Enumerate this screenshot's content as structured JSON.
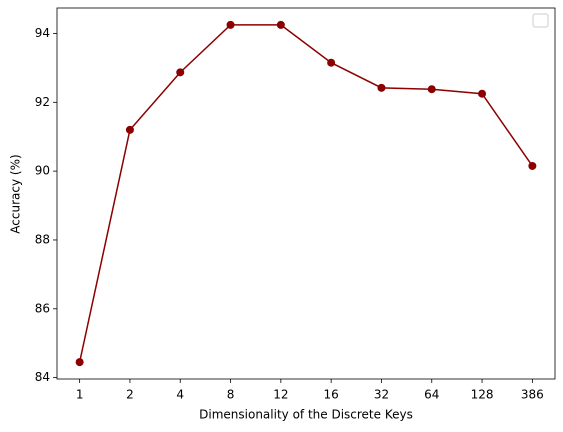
{
  "chart_data": {
    "type": "line",
    "xlabel": "Dimensionality of the Discrete Keys",
    "ylabel": "Accuracy (%)",
    "categories": [
      "1",
      "2",
      "4",
      "8",
      "12",
      "16",
      "32",
      "64",
      "128",
      "386"
    ],
    "series": [
      {
        "color": "#8b0000",
        "values": [
          84.45,
          91.2,
          92.87,
          94.25,
          94.25,
          93.15,
          92.42,
          92.38,
          92.25,
          90.15
        ]
      }
    ],
    "ylim": [
      83.96,
      94.74
    ],
    "yticks": [
      84,
      86,
      88,
      90,
      92,
      94
    ]
  }
}
